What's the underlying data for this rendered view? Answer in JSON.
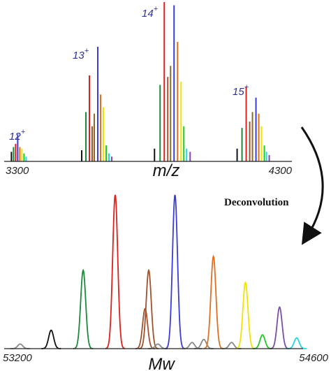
{
  "chart_data": [
    {
      "type": "bar",
      "name": "mass-spectrum",
      "xlabel": "m/z",
      "xlim": [
        3300,
        4300
      ],
      "x_tick_labels": [
        "3300",
        "4300"
      ],
      "charge_states": [
        {
          "number": "12",
          "sign": "+"
        },
        {
          "number": "13",
          "sign": "+"
        },
        {
          "number": "14",
          "sign": "+"
        },
        {
          "number": "15",
          "sign": "+"
        }
      ],
      "ylim": [
        0,
        1
      ],
      "peak_groups": [
        {
          "center": 3347,
          "peaks": [
            {
              "dx": -9,
              "h": 0.06,
              "color": "#111111"
            },
            {
              "dx": -6,
              "h": 0.09,
              "color": "#1b8a3c"
            },
            {
              "dx": -3,
              "h": 0.11,
              "color": "#e0201b"
            },
            {
              "dx": 0,
              "h": 0.17,
              "color": "#3b3bd8"
            },
            {
              "dx": 3,
              "h": 0.09,
              "color": "#e07020"
            },
            {
              "dx": 6,
              "h": 0.08,
              "color": "#f2e200"
            },
            {
              "dx": 9,
              "h": 0.05,
              "color": "#22c922"
            },
            {
              "dx": 12,
              "h": 0.03,
              "color": "#22d6e0"
            }
          ]
        },
        {
          "center": 3618,
          "peaks": [
            {
              "dx": -20,
              "h": 0.07,
              "color": "#111111"
            },
            {
              "dx": -14,
              "h": 0.31,
              "color": "#1b8a3c"
            },
            {
              "dx": -9,
              "h": 0.54,
              "color": "#e0201b"
            },
            {
              "dx": -5,
              "h": 0.22,
              "color": "#a0522d"
            },
            {
              "dx": -2,
              "h": 0.3,
              "color": "#8b6b2b"
            },
            {
              "dx": 3,
              "h": 0.72,
              "color": "#3b3bd8"
            },
            {
              "dx": 7,
              "h": 0.42,
              "color": "#e07020"
            },
            {
              "dx": 11,
              "h": 0.34,
              "color": "#f2e200"
            },
            {
              "dx": 15,
              "h": 0.1,
              "color": "#22c922"
            },
            {
              "dx": 19,
              "h": 0.05,
              "color": "#22d6e0"
            },
            {
              "dx": 23,
              "h": 0.03,
              "color": "#8e44ad"
            }
          ]
        },
        {
          "center": 3888,
          "peaks": [
            {
              "dx": -27,
              "h": 0.08,
              "color": "#111111"
            },
            {
              "dx": -19,
              "h": 0.48,
              "color": "#1b8a3c"
            },
            {
              "dx": -13,
              "h": 1.0,
              "color": "#e0201b"
            },
            {
              "dx": -8,
              "h": 0.53,
              "color": "#a0522d"
            },
            {
              "dx": -4,
              "h": 0.6,
              "color": "#8b6b2b"
            },
            {
              "dx": 1,
              "h": 0.98,
              "color": "#3b3bd8"
            },
            {
              "dx": 6,
              "h": 0.75,
              "color": "#e07020"
            },
            {
              "dx": 11,
              "h": 0.5,
              "color": "#f2e200"
            },
            {
              "dx": 15,
              "h": 0.22,
              "color": "#22c922"
            },
            {
              "dx": 19,
              "h": 0.08,
              "color": "#22d6e0"
            },
            {
              "dx": 24,
              "h": 0.06,
              "color": "#8e44ad"
            }
          ]
        },
        {
          "center": 4163,
          "peaks": [
            {
              "dx": -22,
              "h": 0.08,
              "color": "#111111"
            },
            {
              "dx": -15,
              "h": 0.21,
              "color": "#1b8a3c"
            },
            {
              "dx": -9,
              "h": 0.47,
              "color": "#e0201b"
            },
            {
              "dx": -4,
              "h": 0.25,
              "color": "#a0522d"
            },
            {
              "dx": 0,
              "h": 0.31,
              "color": "#8b6b2b"
            },
            {
              "dx": 5,
              "h": 0.4,
              "color": "#3b3bd8"
            },
            {
              "dx": 9,
              "h": 0.3,
              "color": "#e07020"
            },
            {
              "dx": 13,
              "h": 0.22,
              "color": "#f2e200"
            },
            {
              "dx": 17,
              "h": 0.1,
              "color": "#22c922"
            },
            {
              "dx": 20,
              "h": 0.06,
              "color": "#22d6e0"
            },
            {
              "dx": 24,
              "h": 0.04,
              "color": "#8e44ad"
            }
          ]
        }
      ]
    },
    {
      "type": "line",
      "name": "deconvoluted-spectrum",
      "xlabel": "Mw",
      "xlim": [
        53200,
        54600
      ],
      "x_tick_labels": [
        "53200",
        "54600"
      ],
      "ylim": [
        0,
        1
      ],
      "peaks": [
        {
          "x": 53275,
          "h": 0.03,
          "color": "#888888"
        },
        {
          "x": 53420,
          "h": 0.12,
          "color": "#111111"
        },
        {
          "x": 53570,
          "h": 0.51,
          "color": "#1b8a3c"
        },
        {
          "x": 53720,
          "h": 1.0,
          "color": "#e0201b"
        },
        {
          "x": 53860,
          "h": 0.26,
          "color": "#a0522d"
        },
        {
          "x": 53877,
          "h": 0.51,
          "color": "#a0522d"
        },
        {
          "x": 53920,
          "h": 0.03,
          "color": "#888888"
        },
        {
          "x": 54000,
          "h": 1.0,
          "color": "#3b3bd8"
        },
        {
          "x": 54080,
          "h": 0.04,
          "color": "#888888"
        },
        {
          "x": 54135,
          "h": 0.06,
          "color": "#888888"
        },
        {
          "x": 54180,
          "h": 0.6,
          "color": "#e07020"
        },
        {
          "x": 54265,
          "h": 0.04,
          "color": "#888888"
        },
        {
          "x": 54330,
          "h": 0.43,
          "color": "#f2e200"
        },
        {
          "x": 54410,
          "h": 0.09,
          "color": "#22c922"
        },
        {
          "x": 54490,
          "h": 0.27,
          "color": "#7b4ea8"
        },
        {
          "x": 54570,
          "h": 0.07,
          "color": "#22d6e0"
        }
      ]
    }
  ],
  "annotation": {
    "deconvolution_label": "Deconvolution"
  }
}
